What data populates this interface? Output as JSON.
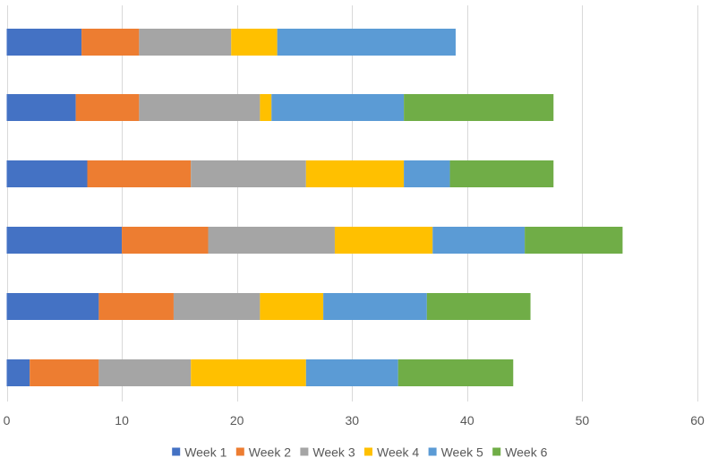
{
  "chart_data": {
    "type": "bar",
    "orientation": "horizontal",
    "stacked": true,
    "title": "",
    "xlabel": "",
    "ylabel": "",
    "categories": [
      "",
      "",
      "",
      "",
      "",
      ""
    ],
    "xlim": [
      0,
      60
    ],
    "x_ticks": [
      0,
      10,
      20,
      30,
      40,
      50,
      60
    ],
    "grid": "vertical",
    "legend_position": "bottom",
    "series": [
      {
        "name": "Week 1",
        "color": "#4472C4",
        "values": [
          6.5,
          6,
          7,
          10,
          8,
          2
        ]
      },
      {
        "name": "Week 2",
        "color": "#ED7D31",
        "values": [
          5,
          5.5,
          9,
          7.5,
          6.5,
          6
        ]
      },
      {
        "name": "Week 3",
        "color": "#A5A5A5",
        "values": [
          8,
          10.5,
          10,
          11,
          7.5,
          8
        ]
      },
      {
        "name": "Week 4",
        "color": "#FFC000",
        "values": [
          4,
          1,
          8.5,
          8.5,
          5.5,
          10
        ]
      },
      {
        "name": "Week 5",
        "color": "#5B9BD5",
        "values": [
          15.5,
          11.5,
          4,
          8,
          9,
          8
        ]
      },
      {
        "name": "Week 6",
        "color": "#70AD47",
        "values": [
          0,
          13,
          9,
          8.5,
          9,
          10
        ]
      }
    ]
  }
}
